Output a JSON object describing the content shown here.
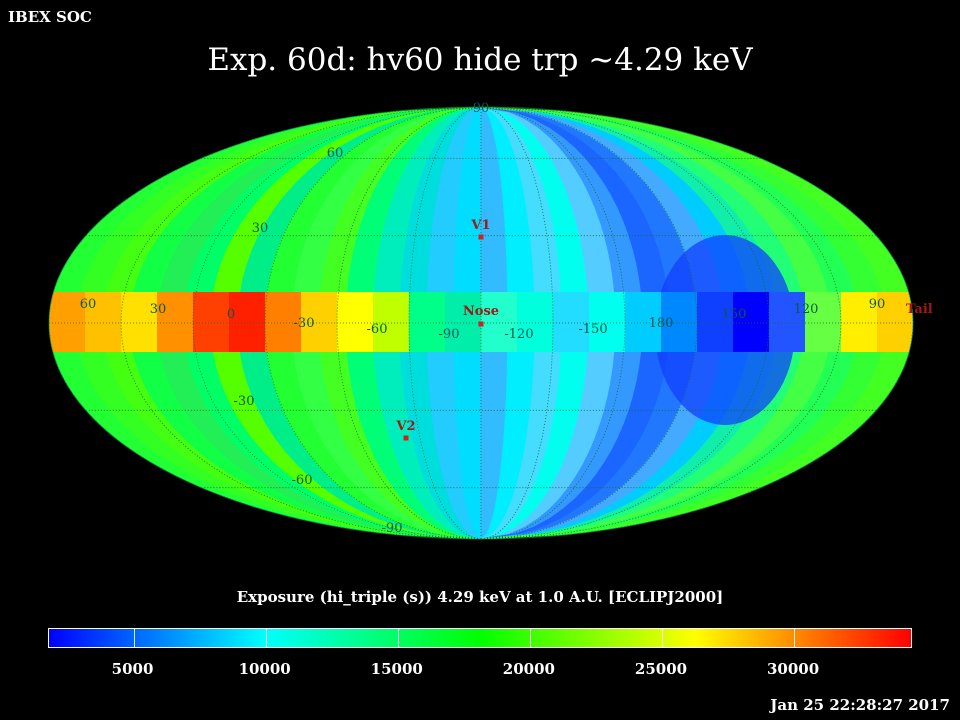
{
  "header": {
    "corner_label": "IBEX SOC",
    "title": "Exp.   60d: hv60 hide trp ~4.29 keV"
  },
  "map": {
    "projection": "Mollweide (ecliptic)",
    "latitude_labels": [
      "90",
      "60",
      "30",
      "-30",
      "-60",
      "-90"
    ],
    "longitude_labels": [
      "60",
      "30",
      "0",
      "-30",
      "-60",
      "-90",
      "-120",
      "-150",
      "180",
      "150",
      "120",
      "90"
    ],
    "markers": [
      {
        "label": "V1",
        "lon_deg": -105,
        "lat_deg": 35
      },
      {
        "label": "Nose",
        "lon_deg": -105,
        "lat_deg": 5
      },
      {
        "label": "V2",
        "lon_deg": -72,
        "lat_deg": -32
      },
      {
        "label": "Tail",
        "lon_deg": 75,
        "lat_deg": -5
      }
    ],
    "marker_color": "#d02020"
  },
  "colorbar": {
    "title": "Exposure (hi_triple (s))  4.29 keV at 1.0 A.U. [ECLIPJ2000]",
    "tick_labels": [
      "5000",
      "10000",
      "15000",
      "20000",
      "25000",
      "30000"
    ],
    "range": [
      1800,
      34500
    ],
    "colors": [
      "#0000ff",
      "#00ffff",
      "#00ff00",
      "#ffff00",
      "#ff0000"
    ]
  },
  "footer": {
    "timestamp": "Jan 25 22:28:27 2017"
  }
}
